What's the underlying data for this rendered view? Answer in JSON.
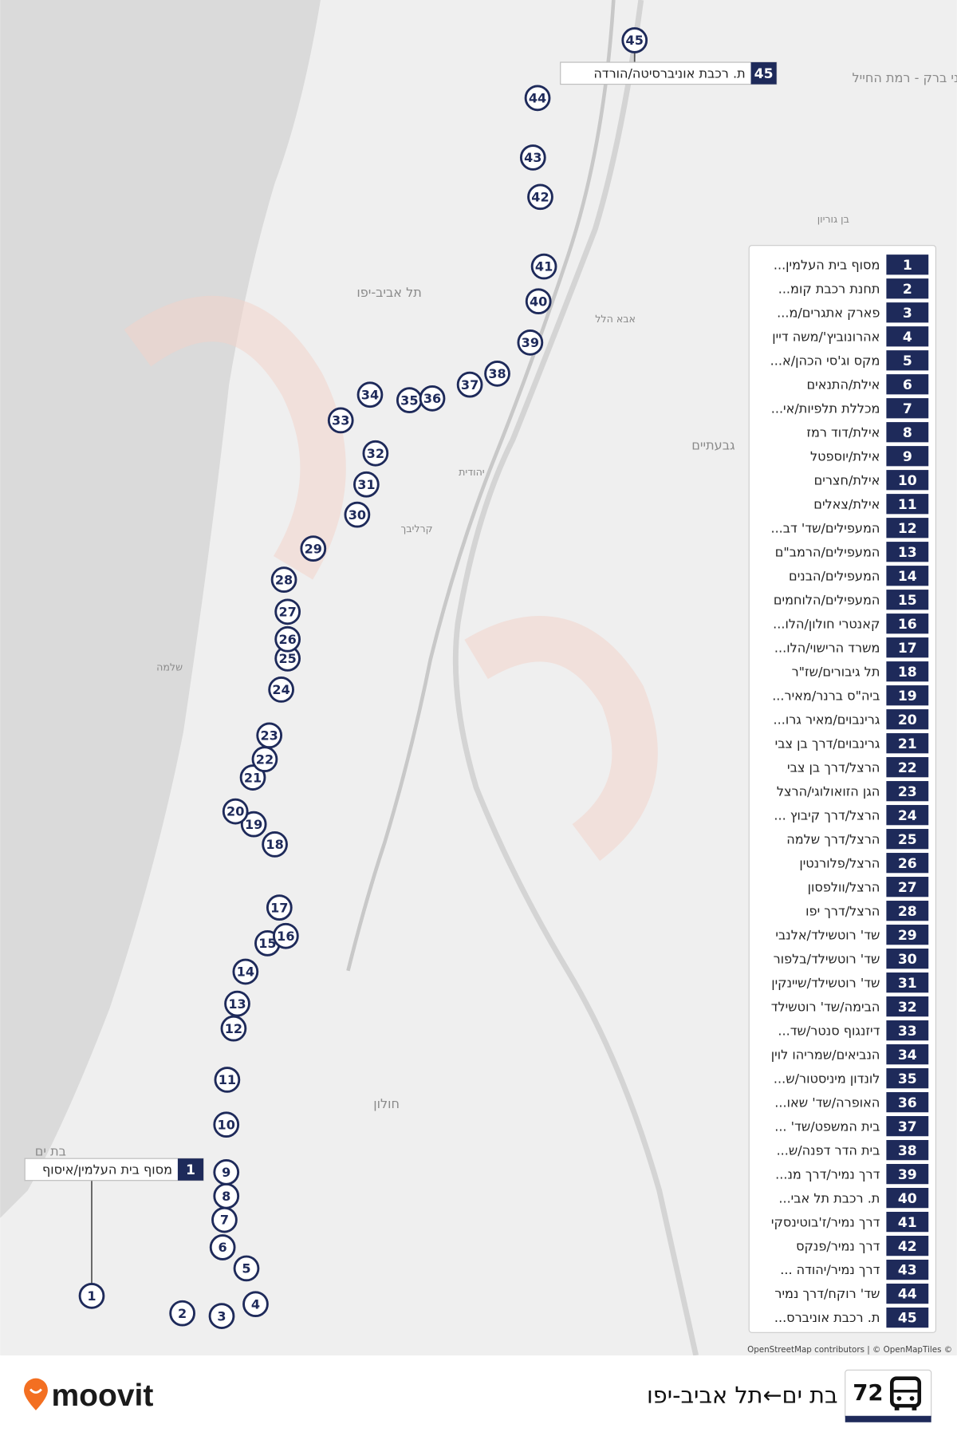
{
  "map": {
    "map_labels": [
      "תל אביב-יפו",
      "גבעתיים",
      "חולון",
      "בת ים",
      "בני ברק - רמת החייל",
      "אבא הלל",
      "יהודית",
      "קרליבך",
      "שלמה",
      "בן גוריון"
    ],
    "attribution": "OpenStreetMap contributors | © OpenMapTiles ©",
    "callouts": [
      {
        "number": "1",
        "name": "מסוף בית העלמין/איסוף"
      },
      {
        "number": "45",
        "name": "ת. רכבת אוניברסיטה/הורדה"
      }
    ],
    "stops": [
      {
        "number": "1",
        "name": "מסוף בית העלמין..."
      },
      {
        "number": "2",
        "name": "תחנת רכבת קומ..."
      },
      {
        "number": "3",
        "name": "פארק אתגרים/מ..."
      },
      {
        "number": "4",
        "name": "אהרונוביץ'/משה דיין"
      },
      {
        "number": "5",
        "name": "מקס וג'סי הכהן/א..."
      },
      {
        "number": "6",
        "name": "אילת/התנאים"
      },
      {
        "number": "7",
        "name": "מכללת תלפיות/אי..."
      },
      {
        "number": "8",
        "name": "אילת/דוד רמז"
      },
      {
        "number": "9",
        "name": "אילת/יוספטל"
      },
      {
        "number": "10",
        "name": "אילת/חצרים"
      },
      {
        "number": "11",
        "name": "אילת/צאלים"
      },
      {
        "number": "12",
        "name": "המעפילים/שד' דב..."
      },
      {
        "number": "13",
        "name": "המעפילים/הרמב\"ם"
      },
      {
        "number": "14",
        "name": "המעפילים/הבנים"
      },
      {
        "number": "15",
        "name": "המעפילים/הלוחמים"
      },
      {
        "number": "16",
        "name": "קאנטרי חולון/הלו..."
      },
      {
        "number": "17",
        "name": "משרד הרישוי/הלו..."
      },
      {
        "number": "18",
        "name": "תל גיבורים/שז\"ר"
      },
      {
        "number": "19",
        "name": "ביה\"ס ברנר/מאיר..."
      },
      {
        "number": "20",
        "name": "גרינבוים/מאיר גרו..."
      },
      {
        "number": "21",
        "name": "גרינבוים/דרך בן צבי"
      },
      {
        "number": "22",
        "name": "הרצל/דרך בן צבי"
      },
      {
        "number": "23",
        "name": "הגן הזואולוגי/הרצל"
      },
      {
        "number": "24",
        "name": "הרצל/דרך קיבוץ ..."
      },
      {
        "number": "25",
        "name": "הרצל/דרך שלמה"
      },
      {
        "number": "26",
        "name": "הרצל/פלורנטין"
      },
      {
        "number": "27",
        "name": "הרצל/וולפסון"
      },
      {
        "number": "28",
        "name": "הרצל/דרך יפו"
      },
      {
        "number": "29",
        "name": "שד' רוטשילד/אלנבי"
      },
      {
        "number": "30",
        "name": "שד' רוטשילד/בלפור"
      },
      {
        "number": "31",
        "name": "שד' רוטשילד/שיינקין"
      },
      {
        "number": "32",
        "name": "הבימה/שד' רוטשילד"
      },
      {
        "number": "33",
        "name": "דיזנגוף סנטר/שד..."
      },
      {
        "number": "34",
        "name": "הנביאים/שמריהו לוין"
      },
      {
        "number": "35",
        "name": "לונדון מיניסטור/ש..."
      },
      {
        "number": "36",
        "name": "האופרה/שד' שאו..."
      },
      {
        "number": "37",
        "name": "בית המשפט/שד' ..."
      },
      {
        "number": "38",
        "name": "בית הדר דפנה/ש..."
      },
      {
        "number": "39",
        "name": "דרך נמיר/דרך מנ..."
      },
      {
        "number": "40",
        "name": "ת. רכבת תל אבי..."
      },
      {
        "number": "41",
        "name": "דרך נמיר/ז'בוטינסקי"
      },
      {
        "number": "42",
        "name": "דרך נמיר/פנקס"
      },
      {
        "number": "43",
        "name": "דרך נמיר/יהודה ..."
      },
      {
        "number": "44",
        "name": "שד' רוקח/דרך נמיר"
      },
      {
        "number": "45",
        "name": "ת. רכבת אוניברס..."
      }
    ]
  },
  "footer": {
    "brand": "moovit",
    "route_number": "72",
    "route_name": "בת ים←תל אביב-יפו"
  }
}
